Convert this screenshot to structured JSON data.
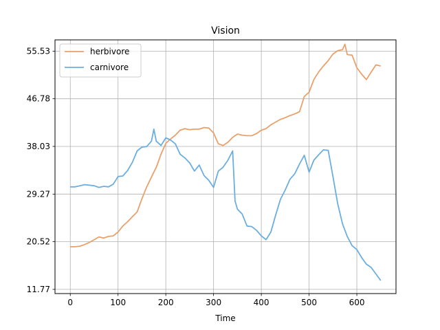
{
  "chart_data": {
    "type": "line",
    "title": "Vision",
    "xlabel": "Time",
    "ylabel": "",
    "xlim": [
      -32,
      682
    ],
    "ylim": [
      11.0,
      57.6
    ],
    "xticks": [
      0,
      100,
      200,
      300,
      400,
      500,
      600
    ],
    "yticks": [
      11.77,
      20.52,
      29.27,
      38.03,
      46.78,
      55.53
    ],
    "ytick_labels": [
      "11.77",
      "20.52",
      "29.27",
      "38.03",
      "46.78",
      "55.53"
    ],
    "grid": true,
    "legend_position": "top-left",
    "series": [
      {
        "name": "herbivore",
        "color": "#e9a06a",
        "x": [
          0,
          10,
          20,
          30,
          40,
          50,
          60,
          70,
          80,
          90,
          100,
          110,
          120,
          130,
          140,
          150,
          160,
          170,
          180,
          190,
          200,
          210,
          220,
          230,
          240,
          250,
          260,
          270,
          280,
          290,
          300,
          310,
          320,
          330,
          340,
          350,
          360,
          370,
          380,
          390,
          400,
          410,
          420,
          430,
          440,
          450,
          460,
          470,
          480,
          490,
          500,
          510,
          520,
          530,
          540,
          550,
          560,
          570,
          575,
          580,
          590,
          600,
          610,
          620,
          630,
          640,
          650
        ],
        "y": [
          19.6,
          19.6,
          19.7,
          20.0,
          20.4,
          20.9,
          21.4,
          21.2,
          21.5,
          21.6,
          22.3,
          23.4,
          24.2,
          25.1,
          26.0,
          28.4,
          30.6,
          32.4,
          34.2,
          36.6,
          38.6,
          39.4,
          40.1,
          41.0,
          41.3,
          41.1,
          41.2,
          41.2,
          41.5,
          41.4,
          40.5,
          38.5,
          38.2,
          38.8,
          39.7,
          40.3,
          40.1,
          40.0,
          40.0,
          40.4,
          41.0,
          41.3,
          42.0,
          42.5,
          43.0,
          43.3,
          43.7,
          44.0,
          44.4,
          47.2,
          48.0,
          50.3,
          51.7,
          52.8,
          53.8,
          55.0,
          55.6,
          55.8,
          56.8,
          54.9,
          54.8,
          52.5,
          51.3,
          50.3,
          51.7,
          53.0,
          52.8
        ]
      },
      {
        "name": "carnivore",
        "color": "#6aaedf",
        "x": [
          0,
          10,
          20,
          30,
          40,
          50,
          60,
          70,
          80,
          90,
          100,
          110,
          120,
          130,
          140,
          150,
          160,
          170,
          175,
          180,
          190,
          200,
          210,
          220,
          230,
          240,
          250,
          260,
          270,
          280,
          290,
          300,
          310,
          320,
          330,
          340,
          345,
          350,
          360,
          370,
          380,
          390,
          400,
          410,
          420,
          430,
          440,
          450,
          460,
          470,
          480,
          490,
          500,
          510,
          520,
          530,
          540,
          550,
          560,
          570,
          580,
          590,
          600,
          610,
          620,
          630,
          640,
          650
        ],
        "y": [
          30.6,
          30.6,
          30.8,
          31.0,
          30.9,
          30.8,
          30.5,
          30.7,
          30.6,
          31.1,
          32.5,
          32.6,
          33.6,
          35.1,
          37.2,
          37.9,
          38.0,
          39.0,
          41.2,
          39.0,
          38.2,
          39.6,
          39.2,
          38.5,
          36.6,
          35.9,
          35.0,
          33.5,
          34.6,
          32.7,
          31.8,
          30.5,
          33.5,
          34.2,
          35.5,
          37.2,
          28.0,
          26.5,
          25.6,
          23.4,
          23.3,
          22.6,
          21.6,
          20.9,
          22.3,
          25.4,
          28.3,
          30.0,
          32.0,
          33.0,
          34.8,
          36.4,
          33.3,
          35.5,
          36.5,
          37.4,
          37.3,
          32.5,
          27.5,
          23.8,
          21.5,
          19.8,
          19.1,
          17.6,
          16.4,
          15.8,
          14.6,
          13.4
        ]
      }
    ]
  }
}
